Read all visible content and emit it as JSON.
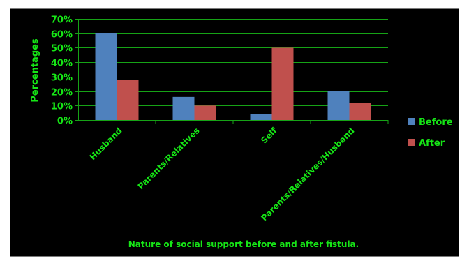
{
  "chart_data": {
    "type": "bar",
    "title": "Nature of social support before and after fistula.",
    "xlabel": "",
    "ylabel": "Percentages",
    "ylim": [
      0,
      70
    ],
    "ytick_step": 10,
    "ytick_format": "%",
    "grid": true,
    "legend_position": "right",
    "categories": [
      "Husband",
      "Parents/Relatives",
      "Self",
      "Parents/Relatives/Husband"
    ],
    "series": [
      {
        "name": "Before",
        "color": "#4f81bd",
        "values": [
          60,
          16,
          4,
          20
        ]
      },
      {
        "name": "After",
        "color": "#c0504d",
        "values": [
          28,
          10,
          50,
          12
        ]
      }
    ],
    "colors": {
      "text": "#16e616",
      "grid": "#16a316",
      "background": "#000000"
    }
  }
}
